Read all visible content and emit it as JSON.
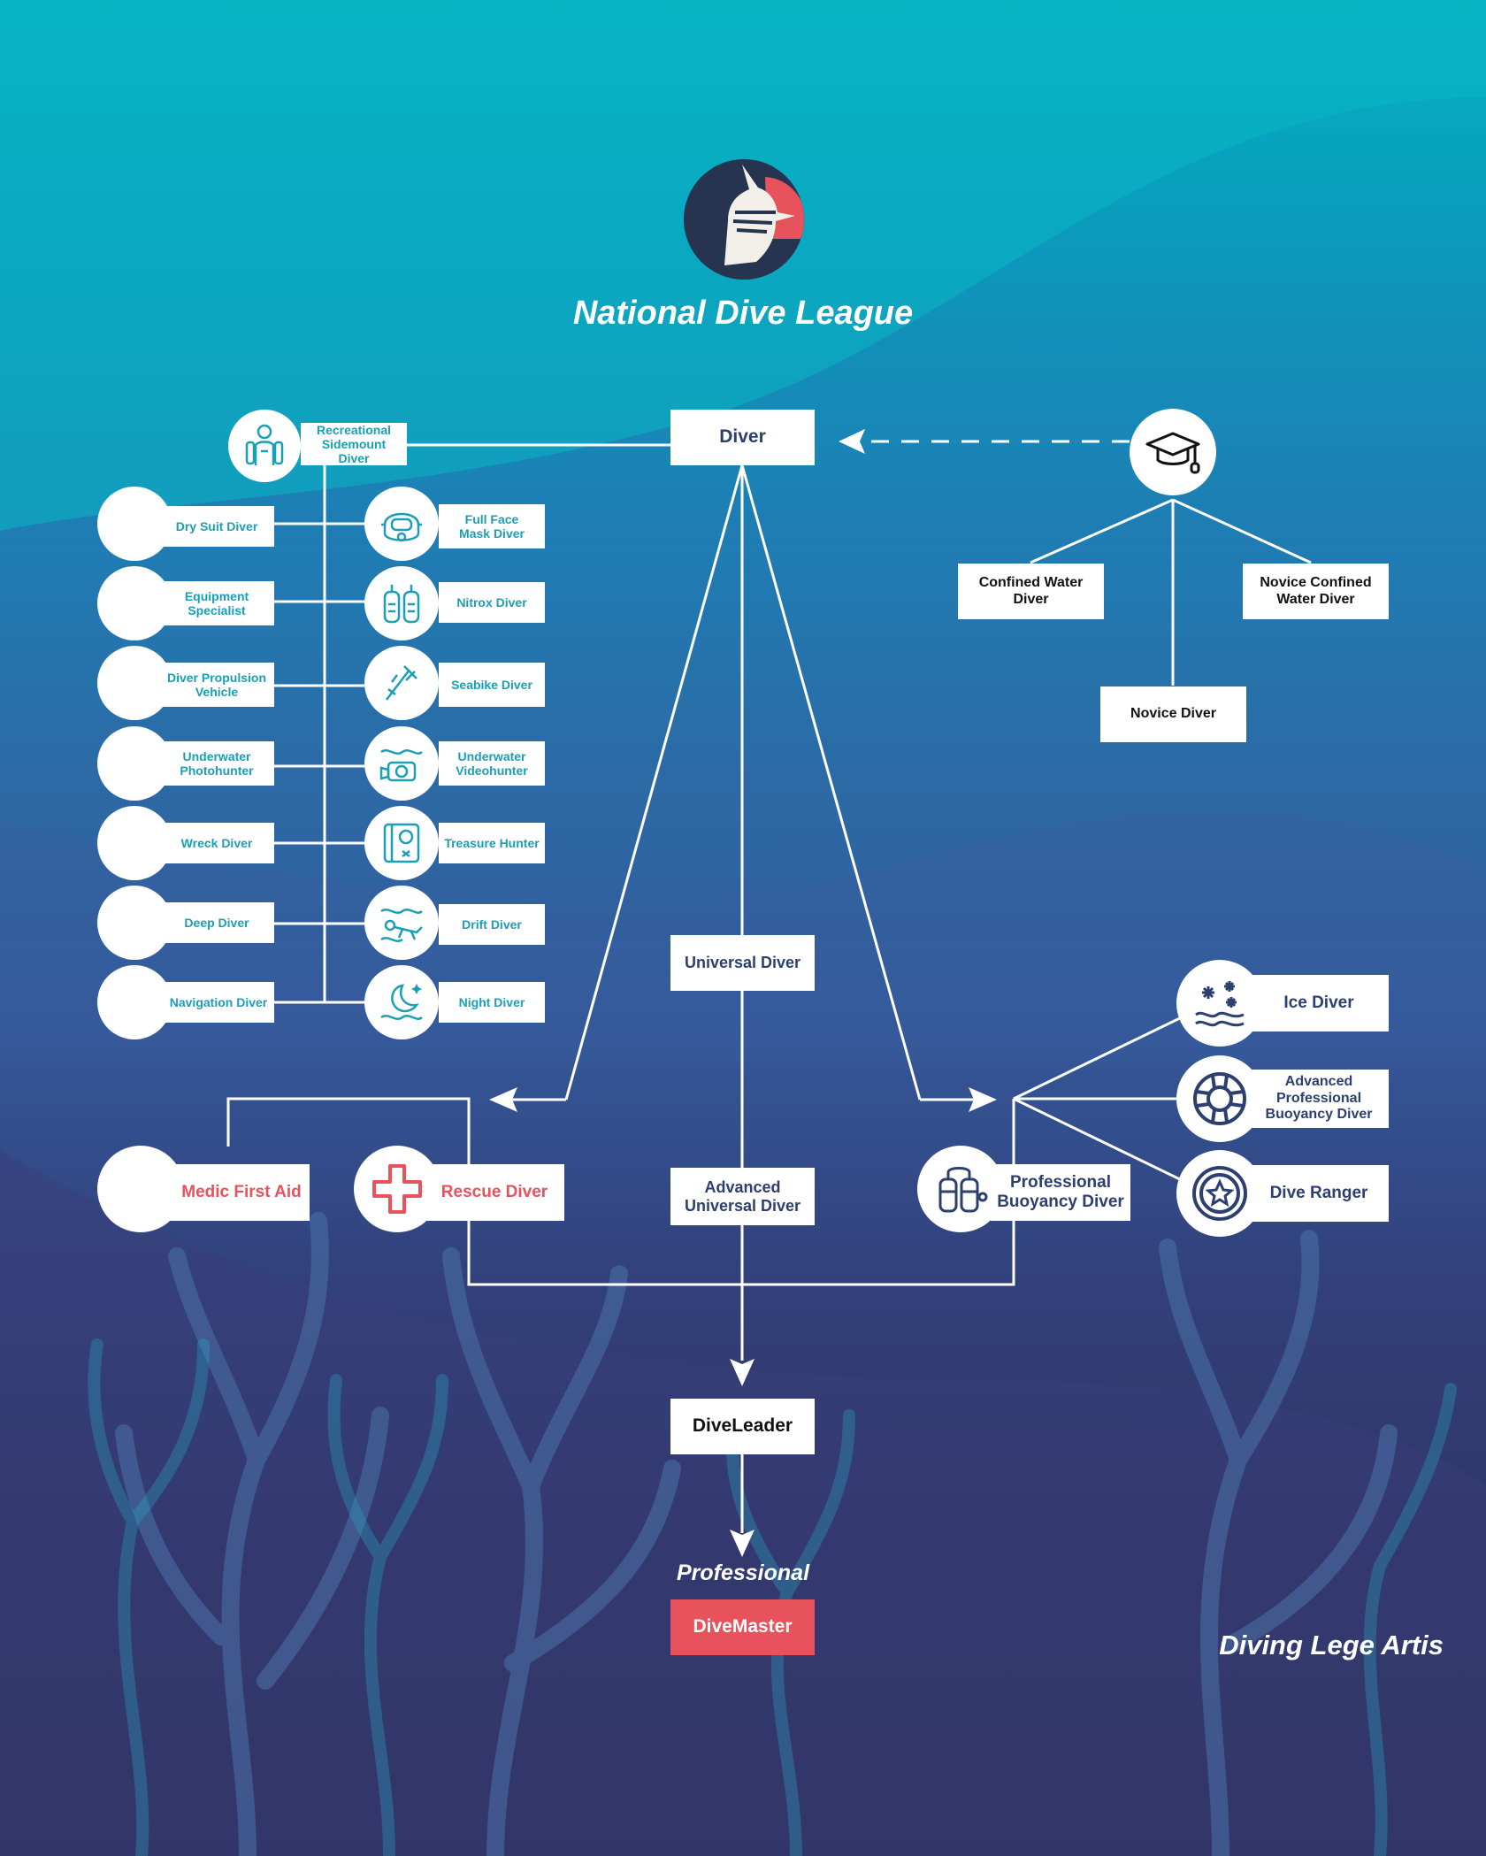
{
  "header": {
    "title": "National Dive League"
  },
  "diagram": {
    "root": "Diver",
    "beginner_levels": [
      "Confined Water Diver",
      "Novice Confined Water Diver",
      "Novice Diver"
    ],
    "specialties_left": [
      "Dry Suit Diver",
      "Equipment Specialist",
      "Diver Propulsion Vehicle",
      "Underwater Photohunter",
      "Wreck Diver",
      "Deep Diver",
      "Navigation Diver"
    ],
    "specialties_top": "Recreational Sidemount Diver",
    "specialties_right": [
      "Full Face Mask Diver",
      "Nitrox Diver",
      "Seabike Diver",
      "Underwater Videohunter",
      "Treasure Hunter",
      "Drift Diver",
      "Night Diver"
    ],
    "universal": "Universal Diver",
    "advanced_universal": "Advanced Universal Diver",
    "medic": "Medic First Aid",
    "rescue": "Rescue Diver",
    "buoyancy": "Professional Buoyancy Diver",
    "ice": "Ice Diver",
    "advanced_buoyancy": "Advanced Professional Buoyancy Diver",
    "ranger": "Dive Ranger",
    "diveleader": "DiveLeader",
    "professional_label": "Professional",
    "divemaster": "DiveMaster"
  },
  "footer": {
    "slogan": "Diving Lege Artis"
  },
  "colors": {
    "teal": "#1a9fb5",
    "navy": "#2c3f6e",
    "red": "#e8525d",
    "white": "#ffffff"
  }
}
